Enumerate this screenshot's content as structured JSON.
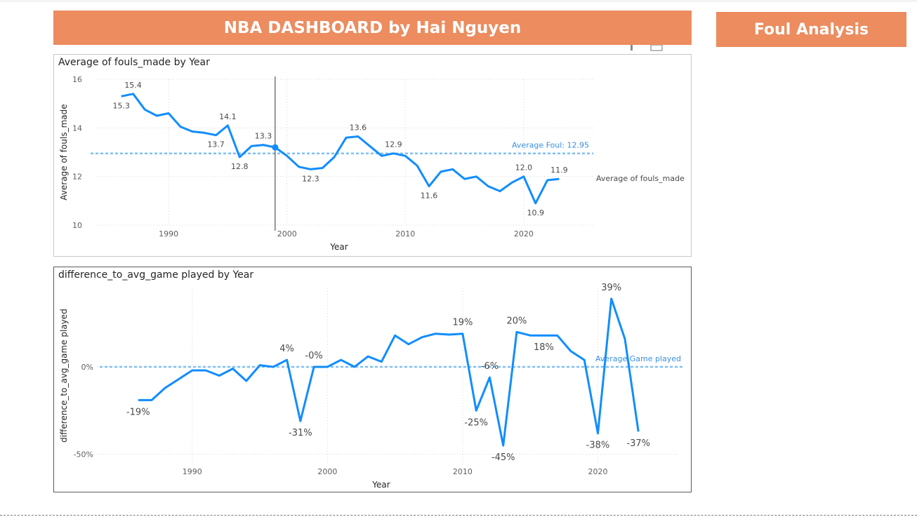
{
  "header": {
    "title": "NBA DASHBOARD by Hai Nguyen",
    "side_title": "Foul Analysis"
  },
  "colors": {
    "banner": "#ec8c5f",
    "series": "#118DFF",
    "reference": "#7fbff5"
  },
  "chart_data": [
    {
      "type": "line",
      "title": "Average of fouls_made by Year",
      "xlabel": "Year",
      "ylabel": "Average of fouls_made",
      "legend": "Average of fouls_made",
      "xlim": [
        1984,
        2026
      ],
      "ylim": [
        10,
        16
      ],
      "xticks": [
        1990,
        2000,
        2010,
        2020
      ],
      "yticks": [
        10,
        12,
        14,
        16
      ],
      "x": [
        1986,
        1987,
        1988,
        1989,
        1990,
        1991,
        1992,
        1993,
        1994,
        1995,
        1996,
        1997,
        1998,
        1999,
        2000,
        2001,
        2002,
        2003,
        2004,
        2005,
        2006,
        2007,
        2008,
        2009,
        2010,
        2011,
        2012,
        2013,
        2014,
        2015,
        2016,
        2017,
        2018,
        2019,
        2020,
        2021,
        2022,
        2023
      ],
      "y": [
        15.3,
        15.4,
        14.75,
        14.5,
        14.6,
        14.05,
        13.85,
        13.8,
        13.7,
        14.1,
        12.8,
        13.25,
        13.3,
        13.2,
        12.85,
        12.4,
        12.3,
        12.35,
        12.8,
        13.6,
        13.65,
        13.25,
        12.85,
        12.95,
        12.85,
        12.45,
        11.6,
        12.2,
        12.3,
        11.9,
        12.0,
        11.6,
        11.4,
        11.75,
        12.0,
        10.9,
        11.85,
        11.9
      ],
      "data_labels": [
        {
          "x": 1986,
          "text": "15.3"
        },
        {
          "x": 1987,
          "text": "15.4"
        },
        {
          "x": 1995,
          "text": "14.1"
        },
        {
          "x": 1994,
          "text": "13.7"
        },
        {
          "x": 1996,
          "text": "12.8"
        },
        {
          "x": 1998,
          "text": "13.3"
        },
        {
          "x": 2002,
          "text": "12.3"
        },
        {
          "x": 2006,
          "text": "13.6"
        },
        {
          "x": 2009,
          "text": "12.9"
        },
        {
          "x": 2012,
          "text": "11.6"
        },
        {
          "x": 2020,
          "text": "12.0"
        },
        {
          "x": 2021,
          "text": "10.9"
        },
        {
          "x": 2023,
          "text": "11.9"
        }
      ],
      "reference_line": {
        "value": 12.95,
        "label": "Average Foul: 12.95"
      },
      "highlight_x": 1999
    },
    {
      "type": "line",
      "title": "difference_to_avg_game played by Year",
      "xlabel": "Year",
      "ylabel": "difference_to_avg_game played",
      "xlim": [
        1983,
        2026
      ],
      "ylim": [
        -0.55,
        0.45
      ],
      "xticks": [
        1990,
        2000,
        2010,
        2020
      ],
      "yticks": [
        0,
        -0.5
      ],
      "ytick_labels": [
        "0%",
        "-50%"
      ],
      "x": [
        1986,
        1987,
        1988,
        1989,
        1990,
        1991,
        1992,
        1993,
        1994,
        1995,
        1996,
        1997,
        1998,
        1999,
        2000,
        2001,
        2002,
        2003,
        2004,
        2005,
        2006,
        2007,
        2008,
        2009,
        2010,
        2011,
        2012,
        2013,
        2014,
        2015,
        2016,
        2017,
        2018,
        2019,
        2020,
        2021,
        2022,
        2023
      ],
      "y": [
        -0.19,
        -0.19,
        -0.12,
        -0.07,
        -0.02,
        -0.02,
        -0.05,
        -0.01,
        -0.08,
        0.01,
        0.0,
        0.04,
        -0.31,
        0.0,
        0.0,
        0.04,
        0.0,
        0.06,
        0.03,
        0.18,
        0.13,
        0.17,
        0.19,
        0.185,
        0.19,
        -0.25,
        -0.06,
        -0.45,
        0.2,
        0.18,
        0.18,
        0.18,
        0.09,
        0.04,
        -0.38,
        0.39,
        0.16,
        -0.37
      ],
      "data_labels": [
        {
          "x": 1986,
          "text": "-19%"
        },
        {
          "x": 1997,
          "text": "4%"
        },
        {
          "x": 1998,
          "text": "-31%"
        },
        {
          "x": 1999,
          "text": "-0%"
        },
        {
          "x": 2010,
          "text": "19%"
        },
        {
          "x": 2011,
          "text": "-25%"
        },
        {
          "x": 2012,
          "text": "-6%"
        },
        {
          "x": 2013,
          "text": "-45%"
        },
        {
          "x": 2014,
          "text": "20%"
        },
        {
          "x": 2016,
          "text": "18%"
        },
        {
          "x": 2020,
          "text": "-38%"
        },
        {
          "x": 2021,
          "text": "39%"
        },
        {
          "x": 2023,
          "text": "-37%"
        }
      ],
      "reference_line": {
        "value": 0,
        "label": "Average Game played"
      }
    }
  ]
}
